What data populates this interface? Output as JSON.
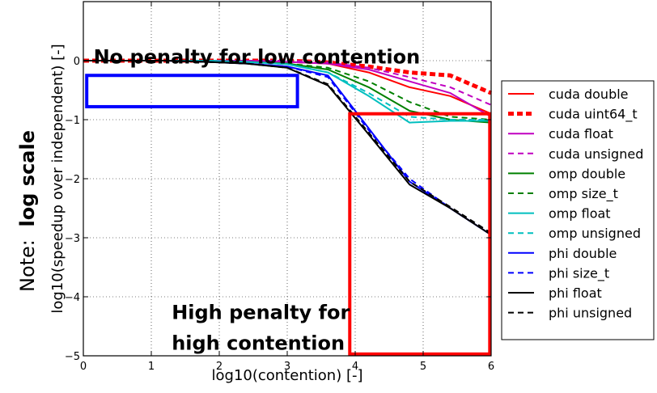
{
  "chart_data": {
    "type": "line",
    "title": "",
    "xlabel": "log10(contention) [-]",
    "ylabel": "log10(speedup over independent) [-]",
    "side_note": {
      "prefix": "Note:",
      "emphasis": "log scale"
    },
    "xlim": [
      0,
      6
    ],
    "ylim": [
      -5,
      1
    ],
    "xticks": [
      0,
      1,
      2,
      3,
      4,
      5,
      6
    ],
    "yticks": [
      -5,
      -4,
      -3,
      -2,
      -1,
      0
    ],
    "xtick_labels": [
      "0",
      "1",
      "2",
      "3",
      "4",
      "5",
      "6"
    ],
    "ytick_labels": [
      "−5",
      "−4",
      "−3",
      "−2",
      "−1",
      "0"
    ],
    "grid": true,
    "legend_placement": "outside-right",
    "x": [
      0,
      0.6,
      1.2,
      1.8,
      2.4,
      3.0,
      3.6,
      4.2,
      4.8,
      5.4,
      6.0
    ],
    "series": [
      {
        "name": "cuda double",
        "color": "#ff0000",
        "style": "solid",
        "width": 2,
        "values": [
          0,
          0,
          0,
          0,
          0,
          -0.02,
          -0.05,
          -0.2,
          -0.45,
          -0.6,
          -0.9
        ]
      },
      {
        "name": "cuda uint64_t",
        "color": "#ff0000",
        "style": "dotted-thick",
        "width": 5,
        "values": [
          0,
          0,
          0,
          0,
          0,
          0,
          -0.03,
          -0.1,
          -0.2,
          -0.25,
          -0.55
        ]
      },
      {
        "name": "cuda float",
        "color": "#c000c0",
        "style": "solid",
        "width": 2,
        "values": [
          0,
          0,
          0,
          0,
          0,
          -0.02,
          -0.05,
          -0.15,
          -0.35,
          -0.55,
          -0.95
        ]
      },
      {
        "name": "cuda unsigned",
        "color": "#c000c0",
        "style": "dashed",
        "width": 2,
        "values": [
          0,
          0,
          0,
          0,
          0,
          0,
          -0.03,
          -0.12,
          -0.28,
          -0.45,
          -0.75
        ]
      },
      {
        "name": "omp double",
        "color": "#008000",
        "style": "solid",
        "width": 2,
        "values": [
          0,
          0,
          0,
          0,
          -0.02,
          -0.05,
          -0.15,
          -0.45,
          -0.85,
          -1.0,
          -1.05
        ]
      },
      {
        "name": "omp size_t",
        "color": "#008000",
        "style": "dashed",
        "width": 2,
        "values": [
          0,
          0,
          0,
          0,
          -0.02,
          -0.05,
          -0.12,
          -0.35,
          -0.7,
          -0.95,
          -1.0
        ]
      },
      {
        "name": "omp float",
        "color": "#00bfbf",
        "style": "solid",
        "width": 2,
        "values": [
          0,
          0,
          0,
          0,
          -0.02,
          -0.06,
          -0.2,
          -0.6,
          -1.05,
          -1.02,
          -1.02
        ]
      },
      {
        "name": "omp unsigned",
        "color": "#00bfbf",
        "style": "dashed",
        "width": 2,
        "values": [
          0,
          0,
          0,
          0,
          -0.02,
          -0.06,
          -0.2,
          -0.55,
          -0.95,
          -1.0,
          -1.0
        ]
      },
      {
        "name": "phi double",
        "color": "#0000ff",
        "style": "solid",
        "width": 2,
        "values": [
          0,
          0,
          0,
          -0.02,
          -0.05,
          -0.1,
          -0.25,
          -1.15,
          -2.05,
          -2.5,
          -2.95
        ]
      },
      {
        "name": "phi size_t",
        "color": "#0000ff",
        "style": "dashed",
        "width": 2,
        "values": [
          0,
          0,
          0,
          -0.02,
          -0.05,
          -0.1,
          -0.28,
          -1.18,
          -2.0,
          -2.5,
          -2.95
        ]
      },
      {
        "name": "phi float",
        "color": "#000000",
        "style": "solid",
        "width": 2,
        "values": [
          0,
          0,
          0,
          -0.02,
          -0.05,
          -0.12,
          -0.42,
          -1.25,
          -2.1,
          -2.5,
          -2.95
        ]
      },
      {
        "name": "phi unsigned",
        "color": "#000000",
        "style": "dashed",
        "width": 2,
        "values": [
          0,
          0,
          0,
          -0.02,
          -0.05,
          -0.12,
          -0.4,
          -1.22,
          -2.05,
          -2.48,
          -2.92
        ]
      }
    ],
    "annotations": [
      {
        "name": "low-contention",
        "text_lines": [
          "No penalty for low contention"
        ],
        "text_anchor": [
          0.15,
          -0.05
        ],
        "box": {
          "color": "#0000ff",
          "x0": 0.05,
          "x1": 3.15,
          "y0": -0.78,
          "y1": -0.25
        }
      },
      {
        "name": "high-contention",
        "text_lines": [
          "High penalty for",
          "high contention"
        ],
        "text_anchor": [
          1.3,
          -4.38
        ],
        "box": {
          "color": "#ff0000",
          "x0": 3.92,
          "x1": 5.98,
          "y0": -4.97,
          "y1": -0.9
        }
      }
    ]
  }
}
